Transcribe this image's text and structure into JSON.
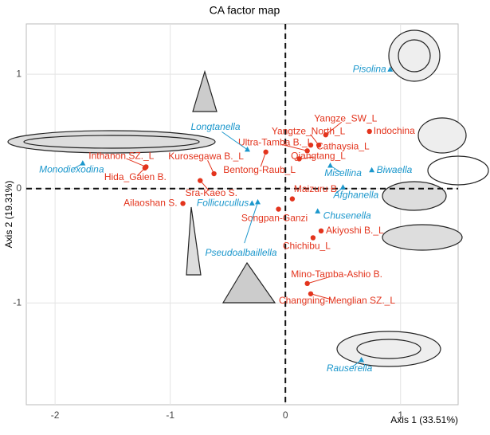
{
  "chart_data": {
    "type": "scatter",
    "title": "CA factor map",
    "x_label": "Axis 1 (33.51%)",
    "y_label": "Axis 2 (19.31%)",
    "xlim": [
      -2.25,
      1.5
    ],
    "ylim": [
      -1.89,
      1.44
    ],
    "xticks": [
      -2,
      -1,
      0,
      1
    ],
    "yticks": [
      -1,
      0,
      1
    ],
    "grid": true,
    "series": [
      {
        "color": "#e3341d",
        "marker": "circle",
        "labels": [
          "Yangze_SW_L",
          "Indochina",
          "Yangtze_North_L",
          "Cathaysia_L",
          "Ultra-Tamba B._L",
          "Qiangtang_L",
          "Kurosegawa B._L",
          "Bentong-Raub_L",
          "Sra-Kaeo S.",
          "Inthanon SZ._L",
          "Hida_Gaien B.",
          "Ailaoshan S.",
          "Maizuru B.",
          "Songpan-Ganzi",
          "Akiyoshi B._L",
          "Chichibu_L",
          "Mino-Tamba-Ashio B.",
          "Changning-Menglian SZ._L"
        ],
        "x": [
          0.35,
          0.73,
          0.29,
          0.22,
          0.19,
          0.12,
          -0.62,
          -0.17,
          -0.74,
          -1.21,
          -1.22,
          -0.89,
          0.06,
          -0.06,
          0.31,
          0.24,
          0.19,
          0.22
        ],
        "y": [
          0.47,
          0.5,
          0.38,
          0.38,
          0.33,
          0.26,
          0.13,
          0.32,
          0.07,
          0.19,
          0.18,
          -0.13,
          -0.09,
          -0.18,
          -0.37,
          -0.43,
          -0.83,
          -0.92
        ]
      },
      {
        "color": "#1b97cc",
        "marker": "triangle",
        "labels": [
          "Pisolina",
          "Longtanella",
          "Monodiexodina",
          "Misellina",
          "Biwaella",
          "Afghanella",
          "Follicucullus",
          "Chusenella",
          "Pseudoalbaillella",
          "Rauserella"
        ],
        "x": [
          0.91,
          -0.33,
          -1.76,
          0.39,
          0.75,
          0.5,
          -0.29,
          0.28,
          -0.24,
          0.66
        ],
        "y": [
          1.04,
          0.34,
          0.22,
          0.2,
          0.16,
          0.01,
          -0.13,
          -0.2,
          -0.12,
          -1.5
        ]
      }
    ]
  }
}
